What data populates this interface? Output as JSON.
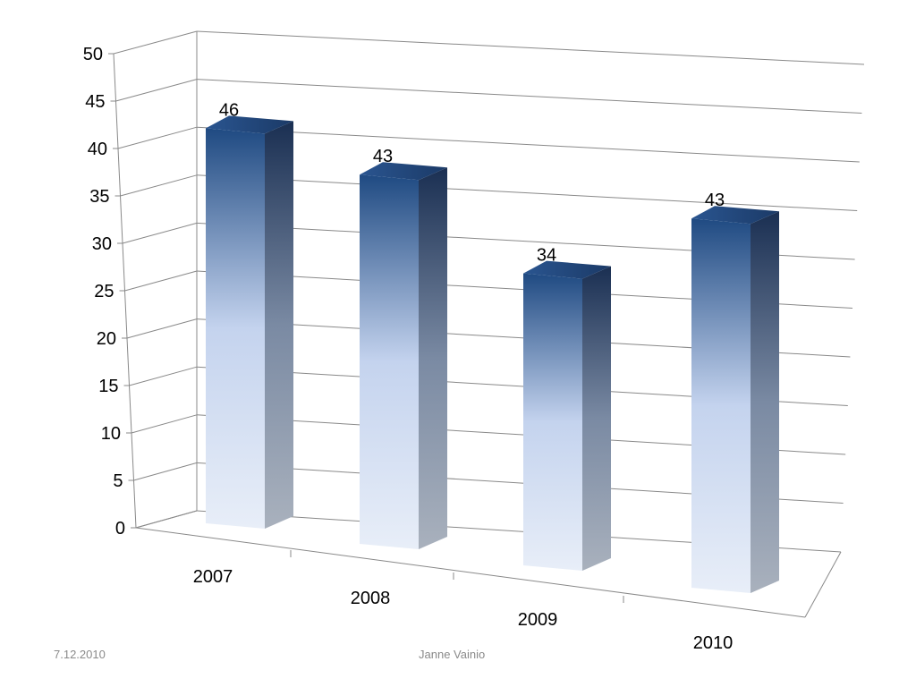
{
  "chart_data": {
    "type": "bar",
    "style": "3d-column",
    "categories": [
      "2007",
      "2008",
      "2009",
      "2010"
    ],
    "values": [
      46,
      43,
      34,
      43
    ],
    "y_ticks": [
      "0",
      "5",
      "10",
      "15",
      "20",
      "25",
      "30",
      "35",
      "40",
      "45",
      "50"
    ],
    "ylim": [
      0,
      50
    ],
    "grid": true,
    "legend": "none",
    "data_labels": true,
    "colors": {
      "top": "#1f4a82",
      "bottom": "#e6edf8",
      "side_top": "#1a2f52",
      "side_bottom": "#b6bcc6",
      "grid": "#898989"
    }
  },
  "footer": {
    "date": "7.12.2010",
    "author": "Janne Vainio"
  }
}
